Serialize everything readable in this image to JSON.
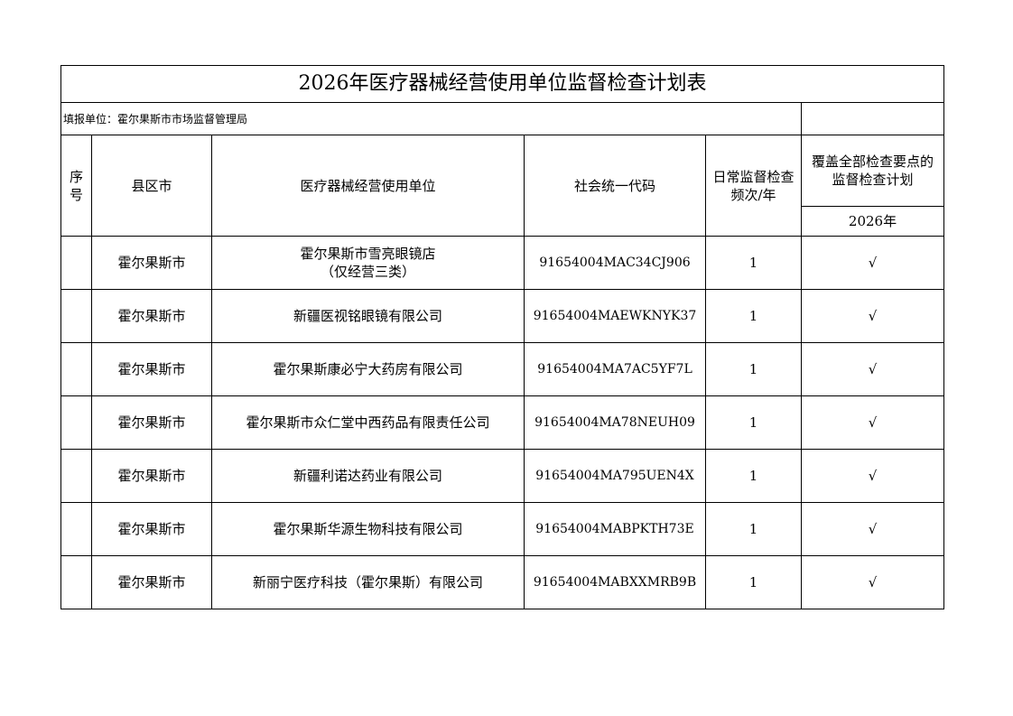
{
  "title": "2026年医疗器械经营使用单位监督检查计划表",
  "reporting_unit": "填报单位：霍尔果斯市市场监督管理局",
  "headers": {
    "seq": "序号",
    "county": "县区市",
    "unit": "医疗器械经营使用单位",
    "code": "社会统一代码",
    "freq": "日常监督检查频次/年",
    "plan": "覆盖全部检查要点的监督检查计划",
    "year": "2026年"
  },
  "rows": [
    {
      "seq": "",
      "county": "霍尔果斯市",
      "unit": "霍尔果斯市雪亮眼镜店",
      "unit2": "（仅经营三类）",
      "code": "91654004MAC34CJ906",
      "freq": "1",
      "plan": "√"
    },
    {
      "seq": "",
      "county": "霍尔果斯市",
      "unit": "新疆医视铭眼镜有限公司",
      "unit2": "",
      "code": "91654004MAEWKNYK37",
      "freq": "1",
      "plan": "√"
    },
    {
      "seq": "",
      "county": "霍尔果斯市",
      "unit": "霍尔果斯康必宁大药房有限公司",
      "unit2": "",
      "code": "91654004MA7AC5YF7L",
      "freq": "1",
      "plan": "√"
    },
    {
      "seq": "",
      "county": "霍尔果斯市",
      "unit": "霍尔果斯市众仁堂中西药品有限责任公司",
      "unit2": "",
      "code": "91654004MA78NEUH09",
      "freq": "1",
      "plan": "√"
    },
    {
      "seq": "",
      "county": "霍尔果斯市",
      "unit": "新疆利诺达药业有限公司",
      "unit2": "",
      "code": "91654004MA795UEN4X",
      "freq": "1",
      "plan": "√"
    },
    {
      "seq": "",
      "county": "霍尔果斯市",
      "unit": "霍尔果斯华源生物科技有限公司",
      "unit2": "",
      "code": "91654004MABPKTH73E",
      "freq": "1",
      "plan": "√"
    },
    {
      "seq": "",
      "county": "霍尔果斯市",
      "unit": "新丽宁医疗科技（霍尔果斯）有限公司",
      "unit2": "",
      "code": "91654004MABXXMRB9B",
      "freq": "1",
      "plan": "√"
    }
  ]
}
